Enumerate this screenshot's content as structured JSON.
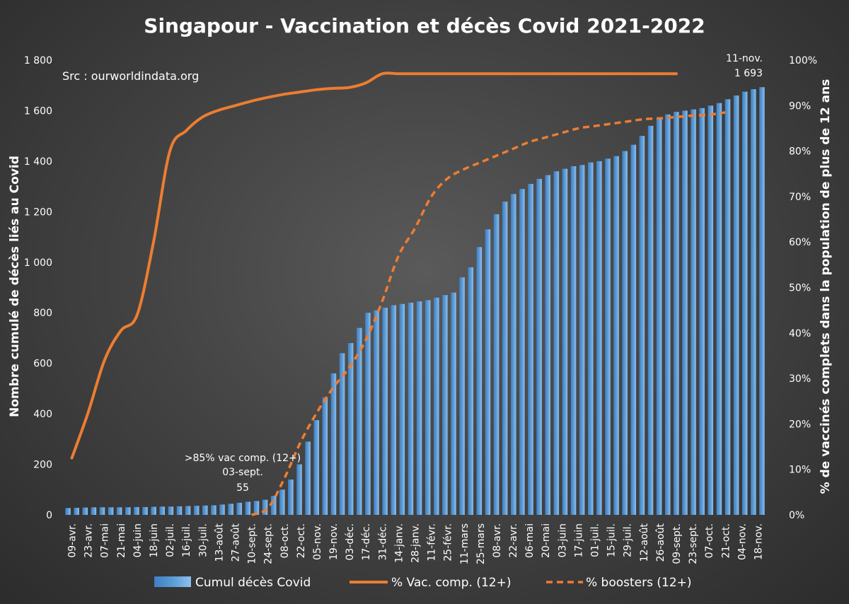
{
  "chart_data": {
    "type": "bar",
    "title": "Singapour - Vaccination et décès Covid 2021-2022",
    "source_note": "Src : ourworldindata.org",
    "ylabel": "Nombre cumulé de décès liés au Covid",
    "y2label": "% de vaccinés complets dans  la population de plus de 12 ans",
    "xlabel": "",
    "ylim": [
      0,
      1800
    ],
    "y2lim": [
      0,
      1.0
    ],
    "y_ticks": [
      "0",
      "200",
      "400",
      "600",
      "800",
      "1 000",
      "1 200",
      "1 400",
      "1 600",
      "1 800"
    ],
    "y2_ticks": [
      "0%",
      "10%",
      "20%",
      "30%",
      "40%",
      "50%",
      "60%",
      "70%",
      "80%",
      "90%",
      "100%"
    ],
    "grid": false,
    "legend_position": "bottom",
    "colors": {
      "bars": "#5b9bd5",
      "vac_line": "#ed7d31",
      "booster_line": "#ed7d31"
    },
    "categories": [
      "09-avr.",
      "23-avr.",
      "07-mai",
      "21-mai",
      "04-juin",
      "18-juin",
      "02-juil.",
      "16-juil.",
      "30-juil.",
      "13-août",
      "27-août",
      "10-sept.",
      "24-sept.",
      "08-oct.",
      "22-oct.",
      "05-nov.",
      "19-nov.",
      "03-déc.",
      "17-déc.",
      "31-déc.",
      "14-janv.",
      "28-janv.",
      "11-févr.",
      "25-févr.",
      "11-mars",
      "25-mars",
      "08-avr.",
      "22-avr.",
      "06-mai",
      "20-mai",
      "03-juin",
      "17-juin",
      "01-juil.",
      "15-juil.",
      "29-juil.",
      "12-août",
      "26-août",
      "09-sept.",
      "23-sept.",
      "07-oct.",
      "21-oct.",
      "04-nov.",
      "18-nov."
    ],
    "series": [
      {
        "name": "Cumul décès Covid",
        "type": "bar",
        "weekly_values": [
          27,
          28,
          29,
          30,
          30,
          30,
          30,
          30,
          31,
          31,
          32,
          33,
          33,
          34,
          35,
          36,
          37,
          38,
          41,
          44,
          48,
          52,
          55,
          60,
          75,
          100,
          140,
          200,
          290,
          375,
          465,
          560,
          640,
          680,
          740,
          800,
          810,
          820,
          830,
          835,
          840,
          845,
          850,
          860,
          870,
          880,
          940,
          980,
          1060,
          1130,
          1190,
          1240,
          1270,
          1290,
          1310,
          1330,
          1345,
          1360,
          1370,
          1380,
          1385,
          1395,
          1400,
          1410,
          1420,
          1440,
          1465,
          1500,
          1540,
          1570,
          1585,
          1595,
          1600,
          1605,
          1610,
          1620,
          1630,
          1645,
          1660,
          1675,
          1685,
          1693
        ]
      },
      {
        "name": "% Vac. comp. (12+)",
        "type": "line",
        "x": [
          "09-avr.",
          "23-avr.",
          "07-mai",
          "21-mai",
          "04-juin",
          "18-juin",
          "02-juil.",
          "16-juil.",
          "30-juil.",
          "13-août",
          "27-août",
          "10-sept.",
          "24-sept.",
          "08-oct.",
          "22-oct.",
          "05-nov.",
          "19-nov.",
          "03-déc.",
          "17-déc.",
          "31-déc.",
          "14-janv.",
          "28-janv.",
          "11-févr.",
          "25-févr.",
          "11-mars",
          "25-mars",
          "08-avr.",
          "22-avr.",
          "06-mai",
          "20-mai",
          "03-juin",
          "17-juin",
          "01-juil.",
          "15-juil.",
          "29-juil.",
          "12-août",
          "26-août",
          "09-sept."
        ],
        "values": [
          0.125,
          0.225,
          0.34,
          0.405,
          0.44,
          0.6,
          0.8,
          0.845,
          0.875,
          0.89,
          0.9,
          0.91,
          0.918,
          0.925,
          0.93,
          0.935,
          0.938,
          0.94,
          0.95,
          0.97,
          0.97,
          0.97,
          0.97,
          0.97,
          0.97,
          0.97,
          0.97,
          0.97,
          0.97,
          0.97,
          0.97,
          0.97,
          0.97,
          0.97,
          0.97,
          0.97,
          0.97,
          0.97
        ]
      },
      {
        "name": "% boosters (12+)",
        "type": "line",
        "dashed": true,
        "x": [
          "10-sept.",
          "24-sept.",
          "08-oct.",
          "22-oct.",
          "05-nov.",
          "19-nov.",
          "03-déc.",
          "17-déc.",
          "31-déc.",
          "14-janv.",
          "28-janv.",
          "11-févr.",
          "25-févr.",
          "11-mars",
          "25-mars",
          "08-avr.",
          "22-avr.",
          "06-mai",
          "20-mai",
          "03-juin",
          "17-juin",
          "01-juil.",
          "15-juil.",
          "29-juil.",
          "12-août",
          "26-août",
          "09-sept.",
          "23-sept.",
          "07-oct.",
          "21-oct."
        ],
        "values": [
          0,
          0.015,
          0.08,
          0.16,
          0.225,
          0.28,
          0.325,
          0.385,
          0.47,
          0.57,
          0.63,
          0.7,
          0.74,
          0.76,
          0.775,
          0.79,
          0.805,
          0.82,
          0.83,
          0.84,
          0.85,
          0.855,
          0.86,
          0.865,
          0.87,
          0.872,
          0.875,
          0.878,
          0.88,
          0.885
        ]
      }
    ],
    "annotations": [
      {
        "lines": [
          ">85% vac comp. (12+)",
          "03-sept.",
          "55"
        ]
      },
      {
        "lines": [
          "11-nov.",
          "1 693"
        ]
      }
    ]
  }
}
